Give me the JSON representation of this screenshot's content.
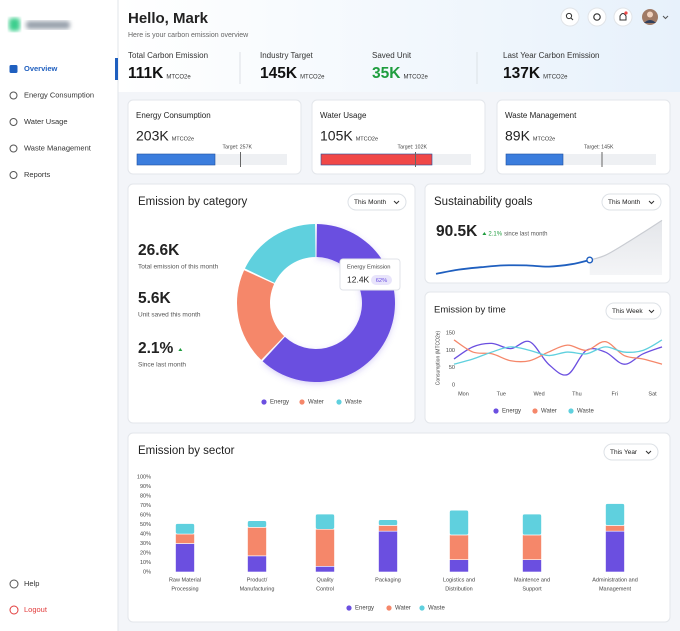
{
  "sidebar": {
    "nav": [
      "Overview",
      "Energy Consumption",
      "Water Usage",
      "Waste Management",
      "Reports"
    ],
    "footer": [
      "Help",
      "Logout"
    ]
  },
  "header": {
    "title": "Hello, Mark",
    "subtitle": "Here is your carbon emission overview"
  },
  "stats": [
    {
      "label": "Total Carbon Emission",
      "value": "111K",
      "unit": "MTCO2e"
    },
    {
      "label": "Industry Target",
      "value": "145K",
      "unit": "MTCO2e"
    },
    {
      "label": "Saved Unit",
      "value": "35K",
      "unit": "MTCO2e"
    },
    {
      "label": "Last Year Carbon Emission",
      "value": "137K",
      "unit": "MTCO2e"
    }
  ],
  "usage_cards": [
    {
      "title": "Energy Consumption",
      "value": "203K",
      "unit": "MTCO2e",
      "target": "Target: 257K",
      "progress": 52,
      "target_marker": 69,
      "color": "#3b7ddd"
    },
    {
      "title": "Water Usage",
      "value": "105K",
      "unit": "MTCO2e",
      "target": "Target: 102K",
      "progress": 74,
      "target_marker": 63,
      "color": "#f04848"
    },
    {
      "title": "Waste Management",
      "value": "89K",
      "unit": "MTCO2e",
      "target": "Target: 145K",
      "progress": 38,
      "target_marker": 64,
      "color": "#3b7ddd"
    }
  ],
  "emission_by_category": {
    "type": "pie",
    "title": "Emission by category",
    "filter": "This Month",
    "stats": [
      {
        "value": "26.6K",
        "label": "Total emission of this month"
      },
      {
        "value": "5.6K",
        "label": "Unit saved this month"
      },
      {
        "value": "2.1%",
        "label": "Since last month"
      }
    ],
    "categories": [
      "Energy",
      "Water",
      "Waste"
    ],
    "values": [
      62,
      20,
      18
    ],
    "colors": [
      "#6b4fe0",
      "#f5876a",
      "#5fd0de"
    ],
    "tooltip": {
      "title": "Energy Emission",
      "value": "12.4K",
      "percent": "62%"
    }
  },
  "sustainability_goals": {
    "type": "line",
    "title": "Sustainability goals",
    "filter": "This Month",
    "value": "90.5K",
    "change": "2.1%",
    "change_label": "since last month",
    "xlim": [
      0,
      10
    ],
    "ylim": [
      0,
      100
    ],
    "x": [
      0,
      1,
      2,
      3,
      4,
      5,
      6,
      6.8
    ],
    "values": [
      2,
      9,
      13,
      16,
      16,
      14,
      18,
      25
    ],
    "projection_x": [
      6.8,
      7.5,
      8.5,
      9.3,
      10
    ],
    "projection": [
      25,
      33,
      55,
      74,
      91
    ],
    "color": "#1f5fbf"
  },
  "emission_by_time": {
    "type": "line",
    "title": "Emission by time",
    "filter": "This Week",
    "ylabel": "Consumption (MTCO2e)",
    "xlim": [
      -0.25,
      5.25
    ],
    "ylim": [
      0,
      150
    ],
    "yticks": [
      0,
      50,
      100,
      150
    ],
    "xticks": [
      {
        "value": 0,
        "label": "Mon"
      },
      {
        "value": 1,
        "label": "Tue"
      },
      {
        "value": 2,
        "label": "Wed"
      },
      {
        "value": 3,
        "label": "Thu"
      },
      {
        "value": 4,
        "label": "Fri"
      },
      {
        "value": 5,
        "label": "Sat"
      }
    ],
    "x": [
      -0.25,
      0.25,
      0.75,
      1.25,
      1.75,
      2.25,
      2.75,
      3.25,
      3.75,
      4.25,
      4.75,
      5.25
    ],
    "series": [
      {
        "name": "Energy",
        "color": "#6b4fe0",
        "values": [
          75,
          110,
          120,
          105,
          125,
          60,
          30,
          100,
          95,
          60,
          90,
          110
        ]
      },
      {
        "name": "Water",
        "color": "#f5876a",
        "values": [
          130,
          95,
          90,
          70,
          70,
          95,
          115,
          100,
          125,
          85,
          75,
          60
        ]
      },
      {
        "name": "Waste",
        "color": "#5fd0de",
        "values": [
          60,
          75,
          95,
          110,
          100,
          85,
          95,
          90,
          110,
          95,
          100,
          130
        ]
      }
    ]
  },
  "emission_by_sector": {
    "type": "bar",
    "stacked": true,
    "title": "Emission by sector",
    "filter": "This Year",
    "ylim": [
      0,
      100
    ],
    "yticks": [
      {
        "value": 0,
        "label": "0%"
      },
      {
        "value": 10,
        "label": "10%"
      },
      {
        "value": 20,
        "label": "20%"
      },
      {
        "value": 30,
        "label": "30%"
      },
      {
        "value": 40,
        "label": "40%"
      },
      {
        "value": 50,
        "label": "50%"
      },
      {
        "value": 60,
        "label": "60%"
      },
      {
        "value": 70,
        "label": "70%"
      },
      {
        "value": 80,
        "label": "80%"
      },
      {
        "value": 90,
        "label": "90%"
      },
      {
        "value": 100,
        "label": "100%"
      }
    ],
    "categories": [
      [
        "Raw Material",
        "Processing"
      ],
      [
        "Product/",
        "Manufacturing"
      ],
      [
        "Quality",
        "Control"
      ],
      [
        "Packaging"
      ],
      [
        "Logistics and",
        "Distribution"
      ],
      [
        "Maintence and",
        "Support"
      ],
      [
        "Administration and",
        "Management"
      ]
    ],
    "series": [
      {
        "name": "Energy",
        "color": "#6b4fe0",
        "values": [
          30,
          17,
          6,
          43,
          13,
          13,
          43
        ]
      },
      {
        "name": "Water",
        "color": "#f5876a",
        "values": [
          10,
          30,
          39,
          6,
          26,
          26,
          6
        ]
      },
      {
        "name": "Waste",
        "color": "#5fd0de",
        "values": [
          11,
          7,
          16,
          6,
          26,
          22,
          23
        ]
      }
    ]
  }
}
